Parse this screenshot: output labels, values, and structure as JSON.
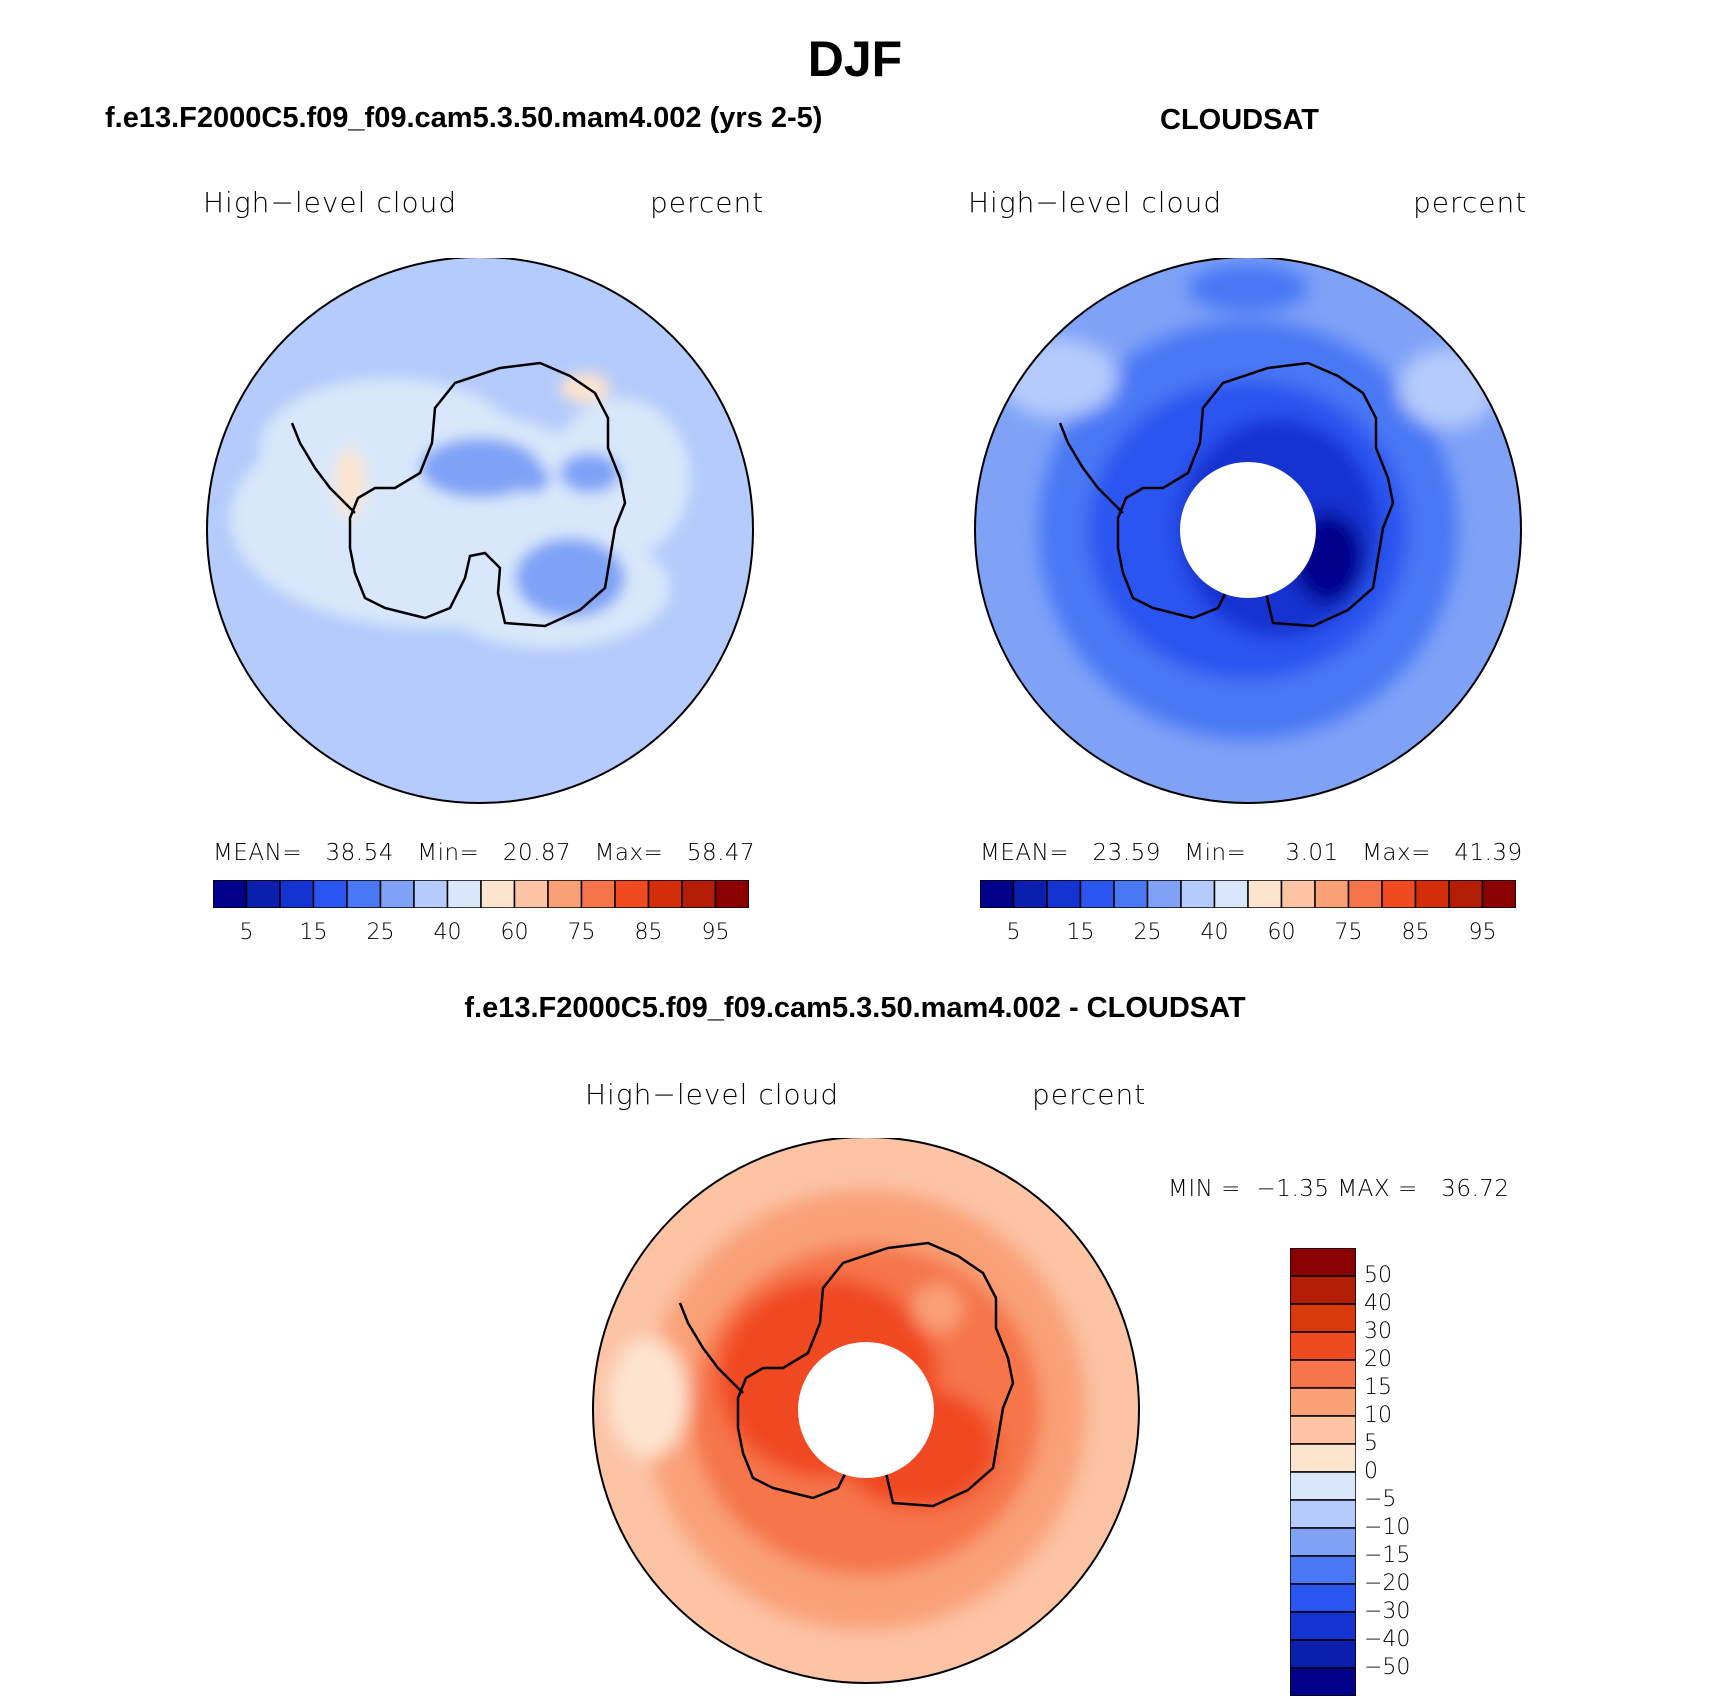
{
  "main_title": "DJF",
  "panels": {
    "model": {
      "title": "f.e13.F2000C5.f09_f09.cam5.3.50.mam4.002 (yrs 2-5)",
      "variable": "High−level cloud",
      "units": "percent",
      "stats": "MEAN=   38.54   Min=   20.87   Max=   58.47",
      "colorbar_ticks": [
        "5",
        "15",
        "25",
        "40",
        "60",
        "75",
        "85",
        "95"
      ]
    },
    "obs": {
      "title": "CLOUDSAT",
      "variable": "High−level cloud",
      "units": "percent",
      "stats": "MEAN=   23.59   Min=     3.01   Max=   41.39",
      "colorbar_ticks": [
        "5",
        "15",
        "25",
        "40",
        "60",
        "75",
        "85",
        "95"
      ]
    },
    "diff": {
      "title": "f.e13.F2000C5.f09_f09.cam5.3.50.mam4.002 - CLOUDSAT",
      "variable": "High−level cloud",
      "units": "percent",
      "stats": "MIN =  −1.35 MAX =   36.72",
      "colorbar_ticks": [
        "50",
        "40",
        "30",
        "20",
        "15",
        "10",
        "5",
        "0",
        "−5",
        "−10",
        "−15",
        "−20",
        "−30",
        "−40",
        "−50"
      ]
    }
  },
  "colors": {
    "abs_scale": [
      "#00008b",
      "#0a1fae",
      "#1433d0",
      "#2a55f0",
      "#4a78f5",
      "#7fa2f7",
      "#b4cbfb",
      "#d8e8fa",
      "#fde4cf",
      "#fcc3a5",
      "#f9a077",
      "#f6744a",
      "#f04a20",
      "#d42d0a",
      "#b31d05",
      "#8b0000"
    ],
    "diff_scale_top_to_bottom": [
      "#8b0000",
      "#b31d05",
      "#d93a0a",
      "#f04a20",
      "#f6744a",
      "#f9a077",
      "#fcc3a5",
      "#fde4cf",
      "#d8e8fa",
      "#b4cbfb",
      "#7fa2f7",
      "#4a78f5",
      "#2a55f0",
      "#1433d0",
      "#0a1fae",
      "#00008b"
    ],
    "model_field": "#b4cbfb",
    "obs_field": "#4a78f5",
    "diff_field": "#f6744a"
  }
}
